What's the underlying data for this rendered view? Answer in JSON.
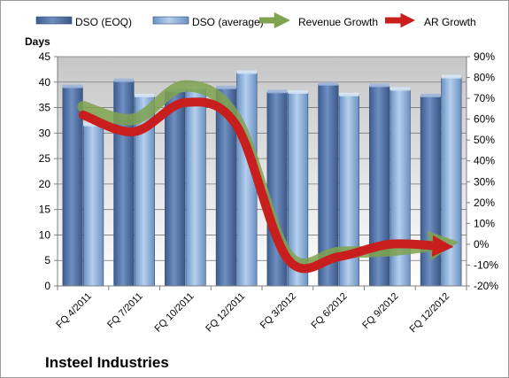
{
  "chart_data": {
    "type": "bar",
    "title": "Insteel Industries",
    "ylabel": "Days",
    "ylim": [
      0,
      45
    ],
    "y_ticks": [
      0,
      5,
      10,
      15,
      20,
      25,
      30,
      35,
      40,
      45
    ],
    "y2lim": [
      -20,
      90
    ],
    "y2_ticks": [
      "-20%",
      "-10%",
      "0%",
      "10%",
      "20%",
      "30%",
      "40%",
      "50%",
      "60%",
      "70%",
      "80%",
      "90%"
    ],
    "y2_tick_values": [
      -20,
      -10,
      0,
      10,
      20,
      30,
      40,
      50,
      60,
      70,
      80,
      90
    ],
    "categories": [
      "FQ 4/2011",
      "FQ 7/2011",
      "FQ 10/2011",
      "FQ 12/2011",
      "FQ 3/2012",
      "FQ 6/2012",
      "FQ 9/2012",
      "FQ 12/2012"
    ],
    "grid": true,
    "legend": "top",
    "series": [
      {
        "name": "DSO (EOQ)",
        "kind": "bar",
        "axis": "left",
        "color": "#4f6fa3",
        "values": [
          39.0,
          40.2,
          38.2,
          38.8,
          38.0,
          39.5,
          39.2,
          37.2
        ]
      },
      {
        "name": "DSO (average)",
        "kind": "bar",
        "axis": "left",
        "color": "#8fb5e0",
        "values": [
          31.5,
          37.2,
          38.8,
          41.8,
          37.9,
          37.4,
          38.5,
          40.9
        ]
      },
      {
        "name": "Revenue Growth",
        "kind": "line",
        "axis": "right",
        "color": "#7fa34f",
        "values": [
          66,
          60,
          76,
          60,
          -5,
          -4,
          -3,
          0
        ]
      },
      {
        "name": "AR Growth",
        "kind": "line",
        "axis": "right",
        "color": "#c81e1e",
        "values": [
          62,
          54,
          68,
          57,
          -7,
          -6,
          0,
          -1
        ]
      }
    ]
  }
}
